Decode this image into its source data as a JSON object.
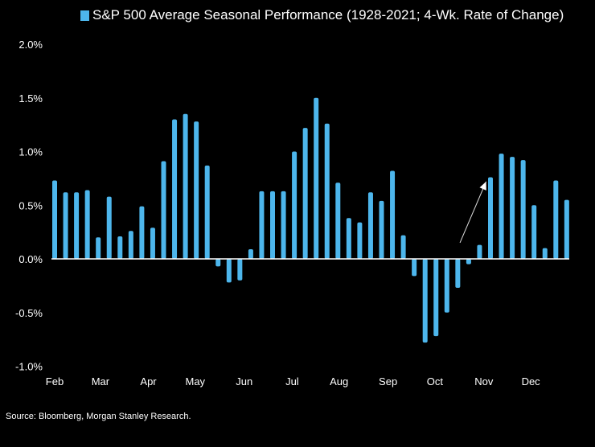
{
  "chart_data": {
    "type": "bar",
    "title": "S&P 500 Average Seasonal Performance (1928-2021; 4-Wk. Rate of Change)",
    "legend": [
      {
        "label": "S&P 500 Average Seasonal Performance (1928-2021; 4-Wk. Rate of Change)",
        "color": "#4db6ec"
      }
    ],
    "legend_placement": "top",
    "xlabel": "",
    "ylabel": "",
    "ylim": [
      -1.0,
      2.0
    ],
    "yticks": [
      -1.0,
      -0.5,
      0.0,
      0.5,
      1.0,
      1.5,
      2.0
    ],
    "ytick_labels": [
      "-1.0%",
      "-0.5%",
      "0.0%",
      "0.5%",
      "1.0%",
      "1.5%",
      "2.0%"
    ],
    "month_labels": [
      {
        "label": "Feb",
        "index": 0
      },
      {
        "label": "Mar",
        "index": 4.2
      },
      {
        "label": "Apr",
        "index": 8.6
      },
      {
        "label": "May",
        "index": 12.9
      },
      {
        "label": "Jun",
        "index": 17.4
      },
      {
        "label": "Jul",
        "index": 21.8
      },
      {
        "label": "Aug",
        "index": 26.1
      },
      {
        "label": "Sep",
        "index": 30.6
      },
      {
        "label": "Oct",
        "index": 34.9
      },
      {
        "label": "Nov",
        "index": 39.4
      },
      {
        "label": "Dec",
        "index": 43.7
      }
    ],
    "values": [
      0.73,
      0.62,
      0.62,
      0.64,
      0.2,
      0.58,
      0.21,
      0.26,
      0.49,
      0.29,
      0.91,
      1.3,
      1.35,
      1.28,
      0.87,
      -0.07,
      -0.22,
      -0.2,
      0.09,
      0.63,
      0.63,
      0.63,
      1.0,
      1.22,
      1.5,
      1.26,
      0.71,
      0.38,
      0.34,
      0.62,
      0.54,
      0.82,
      0.22,
      -0.16,
      -0.78,
      -0.72,
      -0.5,
      -0.27,
      -0.05,
      0.13,
      0.76,
      0.98,
      0.95,
      0.92,
      0.5,
      0.1,
      0.73,
      0.55
    ],
    "grid": false,
    "annotations": [
      {
        "type": "arrow",
        "from_index": 37.2,
        "from_value": 0.15,
        "to_index": 39.6,
        "to_value": 0.72
      }
    ],
    "bar_color": "#4db6ec",
    "source": "Source: Bloomberg, Morgan Stanley Research."
  }
}
